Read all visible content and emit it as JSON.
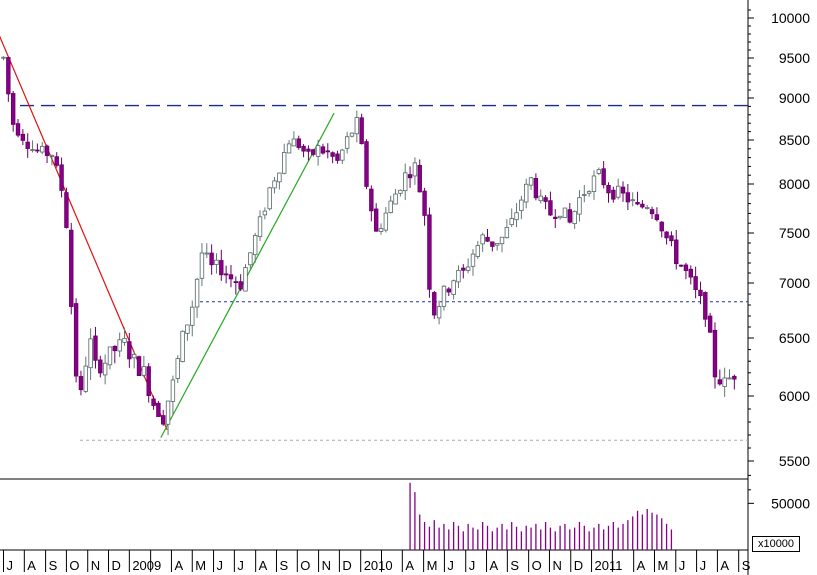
{
  "chart_data": {
    "type": "candlestick",
    "price_axis": {
      "ylim": [
        5250,
        10200
      ],
      "ticks": [
        10000,
        9500,
        9000,
        8500,
        8000,
        7500,
        7000,
        6500,
        6000,
        5500
      ],
      "tick_labels": [
        "10000",
        "9500",
        "9000",
        "8500",
        "8000",
        "7500",
        "7000",
        "6500",
        "6000",
        "5500"
      ]
    },
    "volume_axis": {
      "ylim": [
        0,
        75000
      ],
      "ticks": [
        50000
      ],
      "tick_labels": [
        "50000"
      ],
      "unit_label": "x10000"
    },
    "time_axis": {
      "labels": [
        "J",
        "A",
        "S",
        "O",
        "N",
        "D",
        "2009",
        "",
        "A",
        "M",
        "J",
        "J",
        "A",
        "S",
        "O",
        "N",
        "D",
        "2010",
        "",
        "A",
        "M",
        "J",
        "J",
        "A",
        "S",
        "O",
        "N",
        "D",
        "2011",
        "",
        "A",
        "M",
        "J",
        "J",
        "A",
        "S"
      ],
      "label_weeks": [
        0,
        4.3,
        8.7,
        13,
        17.4,
        21.7,
        26,
        30.4,
        34.7,
        39,
        43.4,
        47.7,
        52.1,
        56.4,
        60.7,
        65.1,
        69.4,
        73.8,
        78.1,
        82.4,
        86.8,
        91.1,
        95.5,
        99.8,
        104.1,
        108.5,
        112.8,
        117.2,
        121.5,
        125.8,
        130.2,
        134.5,
        138.9,
        143.2,
        147.5,
        151.9
      ]
    },
    "guides": {
      "resistance_level": 8910,
      "support_level": 6830,
      "low_level": 5660
    },
    "trendlines": [
      {
        "name": "down",
        "from": [
          -1,
          9800
        ],
        "to": [
          33.8,
          5740
        ]
      },
      {
        "name": "up",
        "from": [
          32.5,
          5680
        ],
        "to": [
          68.3,
          8820
        ]
      }
    ],
    "anchors": [
      [
        0,
        9500
      ],
      [
        1,
        9050
      ],
      [
        2,
        8700
      ],
      [
        4,
        8550
      ],
      [
        6,
        8400
      ],
      [
        8,
        8350
      ],
      [
        10,
        8350
      ],
      [
        12,
        7950
      ],
      [
        13,
        7600
      ],
      [
        14,
        6800
      ],
      [
        15,
        6200
      ],
      [
        16,
        6000
      ],
      [
        17,
        6300
      ],
      [
        18,
        6450
      ],
      [
        19,
        6250
      ],
      [
        21,
        6300
      ],
      [
        23,
        6400
      ],
      [
        25,
        6450
      ],
      [
        27,
        6300
      ],
      [
        29,
        6200
      ],
      [
        31,
        5950
      ],
      [
        33,
        5850
      ],
      [
        35,
        6100
      ],
      [
        37,
        6500
      ],
      [
        39,
        6800
      ],
      [
        41,
        7300
      ],
      [
        43,
        7150
      ],
      [
        45,
        7150
      ],
      [
        47,
        7050
      ],
      [
        49,
        7000
      ],
      [
        51,
        7300
      ],
      [
        53,
        7600
      ],
      [
        55,
        7950
      ],
      [
        57,
        8200
      ],
      [
        59,
        8500
      ],
      [
        61,
        8450
      ],
      [
        63,
        8300
      ],
      [
        65,
        8400
      ],
      [
        67,
        8350
      ],
      [
        69,
        8250
      ],
      [
        71,
        8500
      ],
      [
        73,
        8700
      ],
      [
        74,
        8400
      ],
      [
        75,
        8000
      ],
      [
        77,
        7500
      ],
      [
        79,
        7700
      ],
      [
        81,
        7900
      ],
      [
        83,
        8100
      ],
      [
        85,
        8200
      ],
      [
        87,
        7700
      ],
      [
        88,
        7000
      ],
      [
        89,
        6750
      ],
      [
        91,
        6900
      ],
      [
        93,
        7050
      ],
      [
        95,
        7100
      ],
      [
        97,
        7300
      ],
      [
        99,
        7450
      ],
      [
        101,
        7400
      ],
      [
        103,
        7450
      ],
      [
        105,
        7600
      ],
      [
        107,
        7850
      ],
      [
        109,
        8050
      ],
      [
        111,
        7800
      ],
      [
        113,
        7700
      ],
      [
        115,
        7750
      ],
      [
        117,
        7600
      ],
      [
        119,
        7850
      ],
      [
        121,
        8000
      ],
      [
        123,
        8100
      ],
      [
        125,
        7950
      ],
      [
        127,
        7900
      ],
      [
        129,
        7850
      ],
      [
        131,
        7750
      ],
      [
        133,
        7800
      ],
      [
        135,
        7700
      ],
      [
        137,
        7450
      ],
      [
        139,
        7250
      ],
      [
        141,
        7100
      ],
      [
        143,
        6900
      ],
      [
        145,
        6750
      ],
      [
        147,
        6200
      ],
      [
        149,
        6100
      ],
      [
        151,
        6200
      ]
    ],
    "volume_profile": {
      "start_week": 84,
      "values": [
        72000,
        62000,
        38000,
        30000,
        25000,
        32000,
        24000,
        28000,
        22000,
        30000,
        26000,
        20000,
        28000,
        24000,
        22000,
        30000,
        26000,
        20000,
        24000,
        28000,
        22000,
        30000,
        25000,
        20000,
        26000,
        24000,
        28000,
        22000,
        30000,
        24000,
        20000,
        26000,
        28000,
        22000,
        24000,
        30000,
        26000,
        20000,
        24000,
        28000,
        22000,
        26000,
        30000,
        24000,
        28000,
        32000,
        36000,
        42000,
        38000,
        44000,
        40000,
        38000,
        34000,
        28000,
        22000
      ]
    }
  }
}
